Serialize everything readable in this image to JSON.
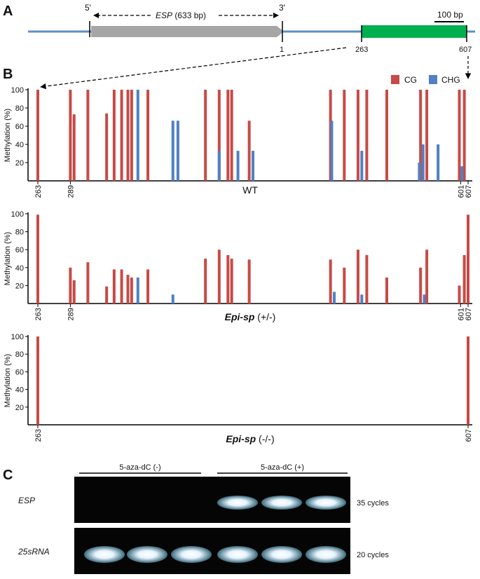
{
  "panels": {
    "a": "A",
    "b": "B",
    "c": "C"
  },
  "gene_map": {
    "five_prime": "5'",
    "three_prime": "3'",
    "esp_name": "ESP",
    "esp_length": "(633 bp)",
    "scale_bar": "100 bp",
    "pos_1": "1",
    "pos_263": "263",
    "pos_607": "607",
    "colors": {
      "backbone": "#5b8fc9",
      "esp": "#a6a6a6",
      "region": "#00b050"
    }
  },
  "legend": {
    "cg": "CG",
    "chg": "CHG",
    "cg_color": "#c84a46",
    "chg_color": "#4f81c4"
  },
  "chart_data": [
    {
      "type": "bar",
      "title": "WT",
      "ylabel": "Methylation (%)",
      "ylim": [
        0,
        100
      ],
      "yticks": [
        "20",
        "40",
        "60",
        "80",
        "100"
      ],
      "xlim": [
        263,
        607
      ],
      "xtick_labels": [
        "263",
        "289",
        "601",
        "607"
      ],
      "xtick_values": [
        263,
        289,
        601,
        607
      ],
      "series": [
        {
          "name": "CG",
          "x": [
            263,
            289,
            292,
            303,
            318,
            324,
            330,
            335,
            338,
            351,
            397,
            408,
            415,
            418,
            432,
            497,
            508,
            519,
            526,
            542,
            569,
            574,
            600,
            604
          ],
          "values": [
            100,
            100,
            73,
            100,
            74,
            100,
            100,
            100,
            100,
            100,
            100,
            100,
            100,
            100,
            66,
            100,
            100,
            100,
            100,
            100,
            100,
            100,
            100,
            100
          ]
        },
        {
          "name": "CHG",
          "x": [
            343,
            371,
            375,
            408,
            423,
            435,
            498,
            522,
            568,
            571,
            583,
            602
          ],
          "values": [
            100,
            66,
            66,
            33,
            33,
            33,
            66,
            33,
            20,
            40,
            40,
            16
          ]
        }
      ]
    },
    {
      "type": "bar",
      "title": "Epi-sp (+/-)",
      "ylabel": "Methylation (%)",
      "ylim": [
        0,
        100
      ],
      "yticks": [
        "20",
        "40",
        "60",
        "80",
        "100"
      ],
      "xlim": [
        263,
        607
      ],
      "xtick_labels": [
        "263",
        "289",
        "601",
        "607"
      ],
      "xtick_values": [
        263,
        289,
        601,
        607
      ],
      "series": [
        {
          "name": "CG",
          "x": [
            263,
            289,
            292,
            303,
            318,
            324,
            330,
            335,
            338,
            351,
            397,
            408,
            415,
            418,
            432,
            497,
            508,
            519,
            526,
            542,
            569,
            574,
            600,
            604,
            607
          ],
          "values": [
            99,
            40,
            26,
            46,
            19,
            38,
            38,
            32,
            29,
            38,
            50,
            60,
            54,
            50,
            49,
            49,
            40,
            60,
            54,
            29,
            40,
            60,
            20,
            54,
            99
          ]
        },
        {
          "name": "CHG",
          "x": [
            343,
            371,
            500,
            522,
            572
          ],
          "values": [
            29,
            10,
            13,
            10,
            10
          ]
        }
      ]
    },
    {
      "type": "bar",
      "title": "Epi-sp (-/-)",
      "ylabel": "Methylation (%)",
      "ylim": [
        0,
        100
      ],
      "yticks": [
        "20",
        "40",
        "60",
        "80",
        "100"
      ],
      "xlim": [
        263,
        607
      ],
      "xtick_labels": [
        "263",
        "607"
      ],
      "xtick_values": [
        263,
        607
      ],
      "series": [
        {
          "name": "CG",
          "x": [
            263,
            607
          ],
          "values": [
            100,
            100
          ]
        }
      ]
    }
  ],
  "gel": {
    "group_minus": "5-aza-dC (-)",
    "group_plus": "5-aza-dC (+)",
    "rows": [
      {
        "label": "ESP",
        "cycles": "35 cycles",
        "bands": [
          0,
          0,
          0,
          1,
          1,
          1
        ]
      },
      {
        "label": "25sRNA",
        "cycles": "20 cycles",
        "bands": [
          1,
          1,
          1,
          1,
          1,
          1
        ]
      }
    ]
  }
}
